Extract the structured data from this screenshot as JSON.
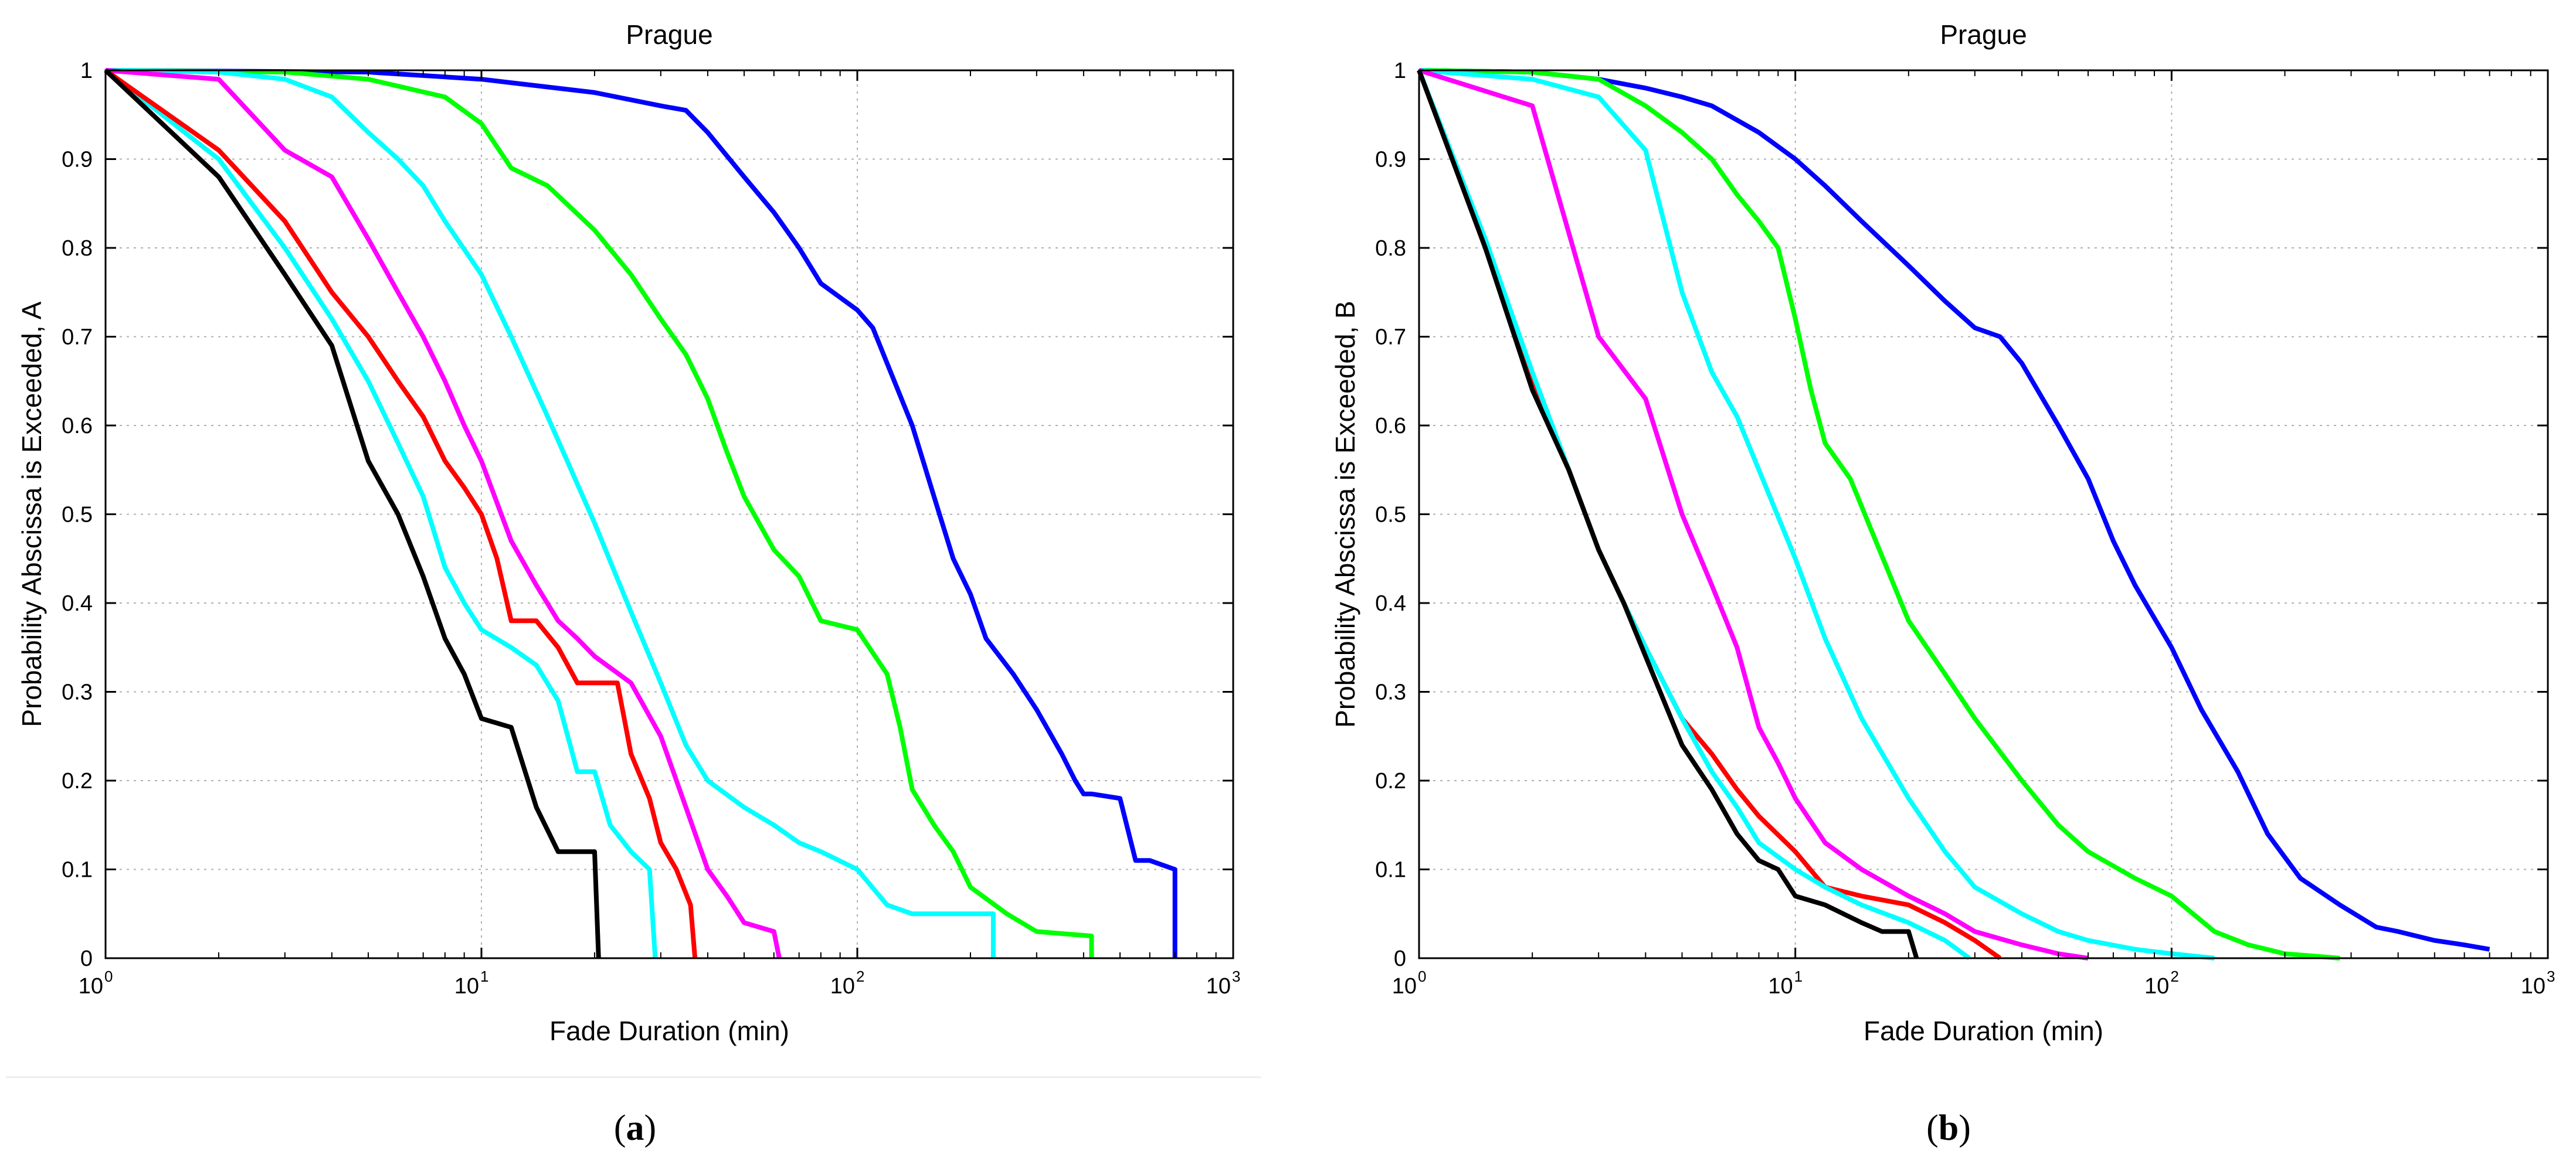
{
  "chart_data": [
    {
      "type": "line",
      "panel_label": "a",
      "title": "Prague",
      "xlabel": "Fade Duration (min)",
      "ylabel": "Probability Abscissa is Exceeded, A",
      "xscale": "log",
      "xlim": [
        1,
        1000
      ],
      "ylim": [
        0,
        1
      ],
      "x_ticks": [
        {
          "base": "10",
          "exp": "0",
          "value": 1
        },
        {
          "base": "10",
          "exp": "1",
          "value": 10
        },
        {
          "base": "10",
          "exp": "2",
          "value": 100
        },
        {
          "base": "10",
          "exp": "3",
          "value": 1000
        }
      ],
      "y_ticks": [
        "0",
        "0.1",
        "0.2",
        "0.3",
        "0.4",
        "0.5",
        "0.6",
        "0.7",
        "0.8",
        "0.9",
        "1"
      ],
      "grid": true,
      "series": [
        {
          "name": "blue",
          "color": "#0000ff",
          "x": [
            1,
            5,
            10,
            20,
            30,
            35,
            40,
            50,
            60,
            70,
            80,
            100,
            110,
            120,
            140,
            160,
            180,
            200,
            220,
            260,
            300,
            350,
            380,
            400,
            420,
            500,
            550,
            600,
            700,
            700
          ],
          "y": [
            1,
            0.998,
            0.99,
            0.975,
            0.96,
            0.955,
            0.93,
            0.88,
            0.84,
            0.8,
            0.76,
            0.73,
            0.71,
            0.67,
            0.6,
            0.52,
            0.45,
            0.41,
            0.36,
            0.32,
            0.28,
            0.23,
            0.2,
            0.185,
            0.185,
            0.18,
            0.11,
            0.11,
            0.1,
            0
          ]
        },
        {
          "name": "green",
          "color": "#00ff00",
          "x": [
            1,
            3,
            5,
            8,
            10,
            12,
            15,
            20,
            25,
            30,
            35,
            40,
            45,
            50,
            60,
            70,
            80,
            100,
            120,
            130,
            140,
            160,
            180,
            200,
            250,
            300,
            420,
            420
          ],
          "y": [
            1,
            0.998,
            0.99,
            0.97,
            0.94,
            0.89,
            0.87,
            0.82,
            0.77,
            0.72,
            0.68,
            0.63,
            0.57,
            0.52,
            0.46,
            0.43,
            0.38,
            0.37,
            0.32,
            0.26,
            0.19,
            0.15,
            0.12,
            0.08,
            0.05,
            0.03,
            0.025,
            0
          ]
        },
        {
          "name": "cyan",
          "color": "#00ffff",
          "x": [
            1,
            2,
            3,
            4,
            5,
            6,
            7,
            8,
            10,
            12,
            15,
            20,
            25,
            30,
            35,
            40,
            50,
            60,
            70,
            80,
            100,
            120,
            140,
            170,
            230,
            230
          ],
          "y": [
            1,
            0.998,
            0.99,
            0.97,
            0.93,
            0.9,
            0.87,
            0.83,
            0.77,
            0.7,
            0.61,
            0.49,
            0.39,
            0.31,
            0.24,
            0.2,
            0.17,
            0.15,
            0.13,
            0.12,
            0.1,
            0.06,
            0.05,
            0.05,
            0.05,
            0
          ]
        },
        {
          "name": "magenta",
          "color": "#ff00ff",
          "x": [
            1,
            2,
            3,
            4,
            5,
            6,
            7,
            8,
            9,
            10,
            12,
            14,
            16,
            18,
            20,
            25,
            30,
            35,
            40,
            45,
            50,
            60,
            62
          ],
          "y": [
            1,
            0.99,
            0.91,
            0.88,
            0.81,
            0.75,
            0.7,
            0.65,
            0.6,
            0.56,
            0.47,
            0.42,
            0.38,
            0.36,
            0.34,
            0.31,
            0.25,
            0.17,
            0.1,
            0.07,
            0.04,
            0.03,
            0
          ]
        },
        {
          "name": "cyan-2",
          "color": "#00ffff",
          "x": [
            1,
            2,
            3,
            4,
            5,
            6,
            7,
            8,
            9,
            10,
            12,
            14,
            16,
            18,
            20,
            22,
            25,
            28,
            29
          ],
          "y": [
            1,
            0.9,
            0.8,
            0.72,
            0.65,
            0.58,
            0.52,
            0.44,
            0.4,
            0.37,
            0.35,
            0.33,
            0.29,
            0.21,
            0.21,
            0.15,
            0.12,
            0.1,
            0
          ]
        },
        {
          "name": "red",
          "color": "#ff0000",
          "x": [
            1,
            2,
            3,
            4,
            5,
            6,
            7,
            8,
            9,
            10,
            11,
            12,
            14,
            16,
            18,
            20,
            23,
            25,
            28,
            30,
            33,
            36,
            37
          ],
          "y": [
            1,
            0.91,
            0.83,
            0.75,
            0.7,
            0.65,
            0.61,
            0.56,
            0.53,
            0.5,
            0.45,
            0.38,
            0.38,
            0.35,
            0.31,
            0.31,
            0.31,
            0.23,
            0.18,
            0.13,
            0.1,
            0.06,
            0
          ]
        },
        {
          "name": "black",
          "color": "#000000",
          "x": [
            1,
            2,
            3,
            4,
            5,
            6,
            7,
            8,
            9,
            10,
            12,
            14,
            16,
            18,
            20,
            20.5
          ],
          "y": [
            1,
            0.88,
            0.77,
            0.69,
            0.56,
            0.5,
            0.43,
            0.36,
            0.32,
            0.27,
            0.26,
            0.17,
            0.12,
            0.12,
            0.12,
            0
          ]
        }
      ]
    },
    {
      "type": "line",
      "panel_label": "b",
      "title": "Prague",
      "xlabel": "Fade Duration (min)",
      "ylabel": "Probability Abscissa is Exceeded, B",
      "xscale": "log",
      "xlim": [
        1,
        1000
      ],
      "ylim": [
        0,
        1
      ],
      "x_ticks": [
        {
          "base": "10",
          "exp": "0",
          "value": 1
        },
        {
          "base": "10",
          "exp": "1",
          "value": 10
        },
        {
          "base": "10",
          "exp": "2",
          "value": 100
        },
        {
          "base": "10",
          "exp": "3",
          "value": 1000
        }
      ],
      "y_ticks": [
        "0",
        "0.1",
        "0.2",
        "0.3",
        "0.4",
        "0.5",
        "0.6",
        "0.7",
        "0.8",
        "0.9",
        "1"
      ],
      "grid": true,
      "series": [
        {
          "name": "blue",
          "color": "#0000ff",
          "x": [
            1,
            2,
            3,
            4,
            5,
            6,
            8,
            10,
            12,
            15,
            20,
            25,
            30,
            35,
            40,
            50,
            60,
            70,
            80,
            100,
            120,
            150,
            180,
            220,
            280,
            350,
            400,
            500,
            600,
            700
          ],
          "y": [
            1,
            0.998,
            0.99,
            0.98,
            0.97,
            0.96,
            0.93,
            0.9,
            0.87,
            0.83,
            0.78,
            0.74,
            0.71,
            0.7,
            0.67,
            0.6,
            0.54,
            0.47,
            0.42,
            0.35,
            0.28,
            0.21,
            0.14,
            0.09,
            0.06,
            0.035,
            0.03,
            0.02,
            0.015,
            0.01
          ]
        },
        {
          "name": "green",
          "color": "#00ff00",
          "x": [
            1,
            2,
            3,
            4,
            5,
            6,
            7,
            8,
            9,
            10,
            11,
            12,
            14,
            16,
            20,
            25,
            30,
            40,
            50,
            60,
            80,
            100,
            130,
            160,
            200,
            280
          ],
          "y": [
            1,
            0.998,
            0.99,
            0.96,
            0.93,
            0.9,
            0.86,
            0.83,
            0.8,
            0.72,
            0.64,
            0.58,
            0.54,
            0.48,
            0.38,
            0.32,
            0.27,
            0.2,
            0.15,
            0.12,
            0.09,
            0.07,
            0.03,
            0.015,
            0.005,
            0
          ]
        },
        {
          "name": "cyan",
          "color": "#00ffff",
          "x": [
            1,
            2,
            3,
            4,
            5,
            6,
            7,
            8,
            10,
            12,
            15,
            20,
            25,
            30,
            40,
            50,
            60,
            80,
            100,
            130
          ],
          "y": [
            1,
            0.99,
            0.97,
            0.91,
            0.75,
            0.66,
            0.61,
            0.55,
            0.45,
            0.36,
            0.27,
            0.18,
            0.12,
            0.08,
            0.05,
            0.03,
            0.02,
            0.01,
            0.005,
            0
          ]
        },
        {
          "name": "magenta",
          "color": "#ff00ff",
          "x": [
            1,
            2,
            3,
            4,
            5,
            6,
            7,
            8,
            9,
            10,
            12,
            15,
            20,
            25,
            30,
            40,
            50,
            60
          ],
          "y": [
            1,
            0.96,
            0.7,
            0.63,
            0.5,
            0.42,
            0.35,
            0.26,
            0.22,
            0.18,
            0.13,
            0.1,
            0.07,
            0.05,
            0.03,
            0.015,
            0.005,
            0
          ]
        },
        {
          "name": "red",
          "color": "#ff0000",
          "x": [
            1,
            1.5,
            2,
            2.5,
            3,
            3.5,
            4,
            5,
            6,
            7,
            8,
            10,
            12,
            15,
            20,
            25,
            30,
            35
          ],
          "y": [
            1,
            0.8,
            0.65,
            0.55,
            0.46,
            0.4,
            0.35,
            0.27,
            0.23,
            0.19,
            0.16,
            0.12,
            0.08,
            0.07,
            0.06,
            0.04,
            0.02,
            0
          ]
        },
        {
          "name": "cyan-2",
          "color": "#00ffff",
          "x": [
            1,
            1.5,
            2,
            2.5,
            3,
            3.5,
            4,
            5,
            6,
            7,
            8,
            10,
            12,
            15,
            20,
            25,
            29
          ],
          "y": [
            1,
            0.81,
            0.66,
            0.55,
            0.46,
            0.4,
            0.35,
            0.27,
            0.21,
            0.17,
            0.13,
            0.1,
            0.08,
            0.06,
            0.04,
            0.02,
            0
          ]
        },
        {
          "name": "black",
          "color": "#000000",
          "x": [
            1,
            1.5,
            2,
            2.5,
            3,
            3.5,
            4,
            5,
            6,
            7,
            8,
            9,
            10,
            12,
            15,
            17,
            20,
            21
          ],
          "y": [
            1,
            0.8,
            0.64,
            0.55,
            0.46,
            0.4,
            0.34,
            0.24,
            0.19,
            0.14,
            0.11,
            0.1,
            0.07,
            0.06,
            0.04,
            0.03,
            0.03,
            0
          ]
        }
      ]
    }
  ],
  "captions": [
    {
      "open": "(",
      "letter": "a",
      "close": ")"
    },
    {
      "open": "(",
      "letter": "b",
      "close": ")"
    }
  ]
}
